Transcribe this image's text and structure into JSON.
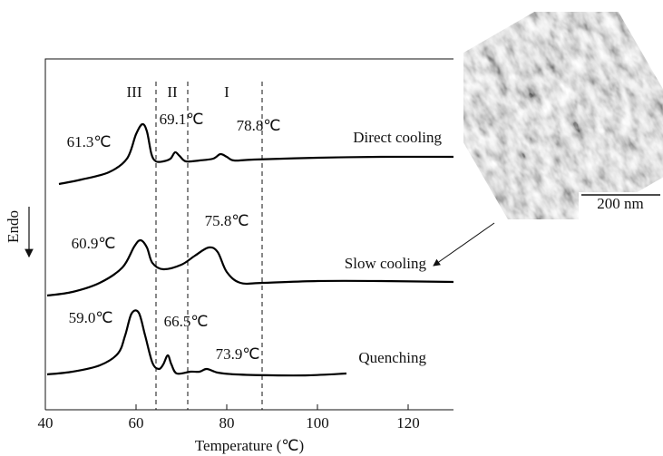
{
  "chart_data": {
    "type": "line",
    "x_label": "Temperature (℃)",
    "y_label": "Endo",
    "xlim": [
      40,
      130
    ],
    "xticks": [
      40,
      60,
      80,
      100,
      120
    ],
    "ylim": [
      0,
      387
    ],
    "reference_lines": [
      64.4,
      71.4,
      87.8
    ],
    "region_labels": [
      "III",
      "II",
      "I"
    ],
    "series": [
      {
        "name": "Direct cooling",
        "color": "#000000",
        "x": [
          43,
          48,
          54,
          58,
          60,
          61.4,
          62.4,
          63.4,
          64.4,
          66,
          67.6,
          68.6,
          69.6,
          71,
          74,
          77,
          78.6,
          80,
          81.6,
          86,
          100,
          114,
          130
        ],
        "values": [
          249,
          254,
          262,
          277,
          304,
          315,
          307,
          282,
          274,
          274,
          277,
          284,
          280,
          274,
          275,
          277,
          282,
          279,
          275,
          276,
          278,
          279,
          279
        ],
        "annotations": [
          "61.3℃",
          "69.1℃",
          "78.8℃"
        ]
      },
      {
        "name": "Slow cooling",
        "color": "#000000",
        "x": [
          40.4,
          46,
          52,
          57,
          59.6,
          61,
          62.4,
          63.6,
          66,
          70,
          73,
          76,
          78,
          80,
          83,
          88,
          100,
          114,
          130
        ],
        "values": [
          126,
          130,
          140,
          157,
          180,
          187,
          179,
          162,
          155,
          160,
          170,
          179,
          174,
          152,
          140,
          140,
          142,
          142,
          141
        ],
        "annotations": [
          "60.9℃",
          "75.8℃"
        ]
      },
      {
        "name": "Quenching",
        "color": "#000000",
        "x": [
          40.4,
          46,
          52,
          56,
          57.6,
          59,
          60.6,
          62,
          63.6,
          65,
          66,
          67,
          67.8,
          69,
          72,
          74,
          75.6,
          78,
          82,
          90,
          98,
          106.4
        ],
        "values": [
          39,
          42,
          49,
          62,
          82,
          106,
          107,
          82,
          52,
          45,
          50,
          60,
          50,
          40,
          42,
          42,
          45,
          41,
          39,
          38,
          38,
          40
        ],
        "annotations": [
          "59.0℃",
          "66.5℃",
          "73.9℃"
        ]
      }
    ],
    "inset": {
      "scale_bar": "200 nm"
    }
  }
}
